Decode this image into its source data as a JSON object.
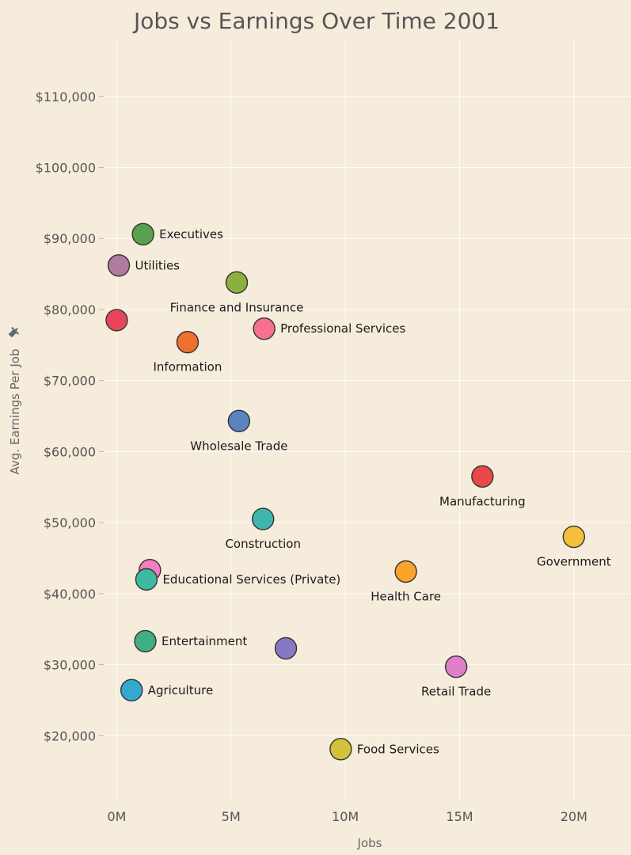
{
  "chart_data": {
    "type": "scatter",
    "title": "Jobs vs Earnings Over Time 2001",
    "xlabel": "Jobs",
    "ylabel": "Avg. Earnings Per Job",
    "xlim": [
      -500000,
      22500000
    ],
    "ylim": [
      11000,
      118000
    ],
    "x_ticks": [
      0,
      5000000,
      10000000,
      15000000,
      20000000
    ],
    "x_tick_labels": [
      "0M",
      "5M",
      "10M",
      "15M",
      "20M"
    ],
    "y_ticks": [
      20000,
      30000,
      40000,
      50000,
      60000,
      70000,
      80000,
      90000,
      100000,
      110000
    ],
    "y_tick_labels": [
      "$20,000",
      "$30,000",
      "$40,000",
      "$50,000",
      "$60,000",
      "$70,000",
      "$80,000",
      "$90,000",
      "$100,000",
      "$110,000"
    ],
    "grid": true,
    "legend": "none",
    "points": [
      {
        "label": "Executives",
        "x": 1150000,
        "y": 90600,
        "color": "#59a14f",
        "label_pos": "right"
      },
      {
        "label": "Utilities",
        "x": 90000,
        "y": 86200,
        "color": "#b07aa1",
        "label_pos": "right"
      },
      {
        "label": "Finance and Insurance",
        "x": 5250000,
        "y": 83800,
        "color": "#8cb040",
        "label_pos": "below"
      },
      {
        "label": "",
        "x": 0,
        "y": 78500,
        "color": "#e8455b",
        "label_pos": "none"
      },
      {
        "label": "Professional Services",
        "x": 6450000,
        "y": 77300,
        "color": "#f8708f",
        "label_pos": "right"
      },
      {
        "label": "Information",
        "x": 3100000,
        "y": 75400,
        "color": "#f07030",
        "label_pos": "below"
      },
      {
        "label": "Wholesale Trade",
        "x": 5350000,
        "y": 64300,
        "color": "#5a83c0",
        "label_pos": "below"
      },
      {
        "label": "Manufacturing",
        "x": 16000000,
        "y": 56500,
        "color": "#e84848",
        "label_pos": "below"
      },
      {
        "label": "Construction",
        "x": 6400000,
        "y": 50500,
        "color": "#40b5b0",
        "label_pos": "below"
      },
      {
        "label": "Government",
        "x": 20000000,
        "y": 48000,
        "color": "#f5bf3a",
        "label_pos": "below"
      },
      {
        "label": "",
        "x": 1450000,
        "y": 43300,
        "color": "#f27fbf",
        "label_pos": "none"
      },
      {
        "label": "Educational Services (Private)",
        "x": 1300000,
        "y": 42000,
        "color": "#3dbaa0",
        "label_pos": "right"
      },
      {
        "label": "Health Care",
        "x": 12650000,
        "y": 43100,
        "color": "#f9a32a",
        "label_pos": "below"
      },
      {
        "label": "Entertainment",
        "x": 1250000,
        "y": 33300,
        "color": "#3fae80",
        "label_pos": "right"
      },
      {
        "label": "",
        "x": 7400000,
        "y": 32300,
        "color": "#8778c4",
        "label_pos": "none"
      },
      {
        "label": "Retail Trade",
        "x": 14850000,
        "y": 29700,
        "color": "#e080c8",
        "label_pos": "below"
      },
      {
        "label": "Agriculture",
        "x": 650000,
        "y": 26400,
        "color": "#34a8d0",
        "label_pos": "right"
      },
      {
        "label": "Food Services",
        "x": 9800000,
        "y": 18100,
        "color": "#d4c23a",
        "label_pos": "right"
      }
    ]
  }
}
